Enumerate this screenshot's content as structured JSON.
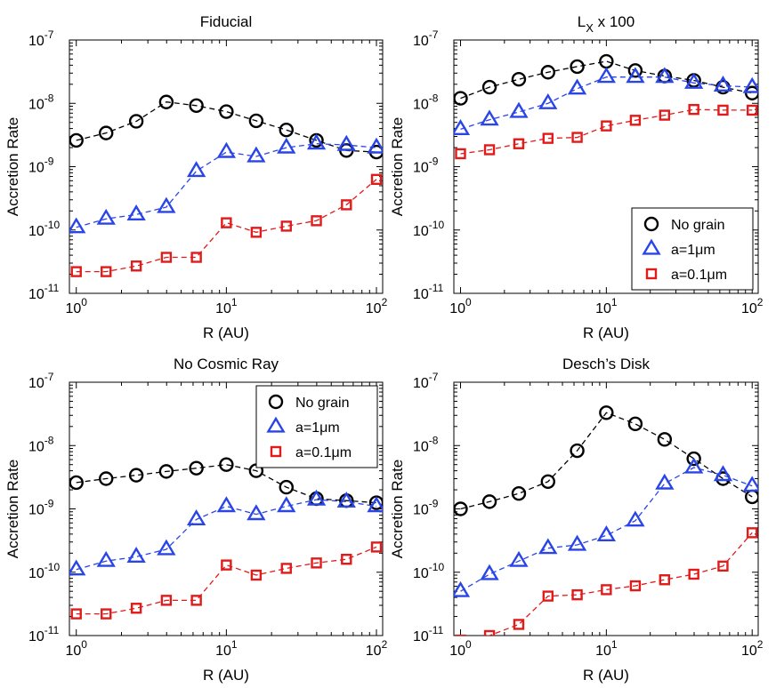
{
  "figure": {
    "description": "Accretion rate vs radius, four panels"
  },
  "legend": {
    "entries": [
      {
        "label": "No grain",
        "marker": "circle",
        "color": "#000000"
      },
      {
        "label": "a=1μm",
        "marker": "triangle",
        "color": "#2a45e6"
      },
      {
        "label": "a=0.1μm",
        "marker": "square",
        "color": "#e11a1a"
      }
    ]
  },
  "chart_data": [
    {
      "type": "line",
      "title": "Fiducial",
      "xlabel": "R (AU)",
      "ylabel": "Accretion Rate",
      "xscale": "log",
      "yscale": "log",
      "xlim": [
        0.9,
        110
      ],
      "ylim": [
        1e-11,
        1e-07
      ],
      "xticks": [
        "10^0",
        "10^1",
        "10^2"
      ],
      "yticks": [
        "10^-11",
        "10^-10",
        "10^-9",
        "10^-8",
        "10^-7"
      ],
      "legend": null,
      "x": [
        1.0,
        1.58,
        2.51,
        3.98,
        6.31,
        10.0,
        15.8,
        25.1,
        39.8,
        63.1,
        100.0
      ],
      "series": [
        {
          "name": "No grain",
          "values": [
            2.6e-09,
            3.4e-09,
            5.2e-09,
            1.05e-08,
            9.2e-09,
            7.4e-09,
            5.3e-09,
            3.8e-09,
            2.6e-09,
            1.8e-09,
            1.7e-09
          ]
        },
        {
          "name": "a=1μm",
          "values": [
            1.1e-10,
            1.5e-10,
            1.75e-10,
            2.3e-10,
            8.5e-10,
            1.7e-09,
            1.45e-09,
            2e-09,
            2.3e-09,
            2.2e-09,
            2e-09
          ]
        },
        {
          "name": "a=0.1μm",
          "values": [
            2.2e-11,
            2.2e-11,
            2.7e-11,
            3.7e-11,
            3.7e-11,
            1.3e-10,
            9.2e-11,
            1.15e-10,
            1.4e-10,
            2.5e-10,
            6.3e-10
          ]
        }
      ]
    },
    {
      "type": "line",
      "title_base": "L",
      "title_sub": "X",
      "title_rest": " x 100",
      "xlabel": "R (AU)",
      "ylabel": "Accretion Rate",
      "xscale": "log",
      "yscale": "log",
      "xlim": [
        0.9,
        110
      ],
      "ylim": [
        1e-11,
        1e-07
      ],
      "xticks": [
        "10^0",
        "10^1",
        "10^2"
      ],
      "yticks": [
        "10^-11",
        "10^-10",
        "10^-9",
        "10^-8",
        "10^-7"
      ],
      "legend": "bottom-right",
      "x": [
        1.0,
        1.58,
        2.51,
        3.98,
        6.31,
        10.0,
        15.8,
        25.1,
        39.8,
        63.1,
        100.0
      ],
      "series": [
        {
          "name": "No grain",
          "values": [
            1.2e-08,
            1.8e-08,
            2.4e-08,
            3.1e-08,
            3.8e-08,
            4.6e-08,
            3.3e-08,
            2.7e-08,
            2.3e-08,
            1.8e-08,
            1.45e-08
          ]
        },
        {
          "name": "a=1μm",
          "values": [
            3.9e-09,
            5.5e-09,
            7.3e-09,
            1e-08,
            1.7e-08,
            2.6e-08,
            2.6e-08,
            2.6e-08,
            2.1e-08,
            1.9e-08,
            1.8e-08
          ]
        },
        {
          "name": "a=0.1μm",
          "values": [
            1.6e-09,
            1.85e-09,
            2.3e-09,
            2.8e-09,
            2.9e-09,
            4.4e-09,
            5.4e-09,
            6.5e-09,
            8e-09,
            7.8e-09,
            7.8e-09
          ]
        }
      ]
    },
    {
      "type": "line",
      "title": "No Cosmic Ray",
      "xlabel": "R (AU)",
      "ylabel": "Accretion Rate",
      "xscale": "log",
      "yscale": "log",
      "xlim": [
        0.9,
        110
      ],
      "ylim": [
        1e-11,
        1e-07
      ],
      "xticks": [
        "10^0",
        "10^1",
        "10^2"
      ],
      "yticks": [
        "10^-11",
        "10^-10",
        "10^-9",
        "10^-8",
        "10^-7"
      ],
      "legend": "top-right",
      "x": [
        1.0,
        1.58,
        2.51,
        3.98,
        6.31,
        10.0,
        15.8,
        25.1,
        39.8,
        63.1,
        100.0
      ],
      "series": [
        {
          "name": "No grain",
          "values": [
            2.6e-09,
            3e-09,
            3.4e-09,
            3.9e-09,
            4.4e-09,
            5e-09,
            4e-09,
            2.2e-09,
            1.45e-09,
            1.35e-09,
            1.25e-09
          ]
        },
        {
          "name": "a=1μm",
          "values": [
            1.1e-10,
            1.5e-10,
            1.75e-10,
            2.3e-10,
            6.8e-10,
            1.1e-09,
            8.2e-10,
            1.1e-09,
            1.4e-09,
            1.3e-09,
            1.1e-09
          ]
        },
        {
          "name": "a=0.1μm",
          "values": [
            2.2e-11,
            2.2e-11,
            2.7e-11,
            3.6e-11,
            3.6e-11,
            1.3e-10,
            9e-11,
            1.15e-10,
            1.4e-10,
            1.6e-10,
            2.5e-10
          ]
        }
      ]
    },
    {
      "type": "line",
      "title": "Desch’s Disk",
      "xlabel": "R (AU)",
      "ylabel": "Accretion Rate",
      "xscale": "log",
      "yscale": "log",
      "xlim": [
        0.9,
        110
      ],
      "ylim": [
        1e-11,
        1e-07
      ],
      "xticks": [
        "10^0",
        "10^1",
        "10^2"
      ],
      "yticks": [
        "10^-11",
        "10^-10",
        "10^-9",
        "10^-8",
        "10^-7"
      ],
      "legend": null,
      "x": [
        1.0,
        1.58,
        2.51,
        3.98,
        6.31,
        10.0,
        15.8,
        25.1,
        39.8,
        63.1,
        100.0
      ],
      "series": [
        {
          "name": "No grain",
          "values": [
            1e-09,
            1.3e-09,
            1.75e-09,
            2.7e-09,
            8.3e-09,
            3.3e-08,
            2.2e-08,
            1.25e-08,
            6.2e-09,
            3e-09,
            1.55e-09
          ]
        },
        {
          "name": "a=1μm",
          "values": [
            5e-11,
            9.3e-11,
            1.5e-10,
            2.4e-10,
            2.7e-10,
            3.8e-10,
            6.5e-10,
            2.5e-09,
            4.5e-09,
            3.4e-09,
            2.3e-09
          ]
        },
        {
          "name": "a=0.1μm",
          "values": [
            8.5e-12,
            1e-11,
            1.5e-11,
            4.2e-11,
            4.4e-11,
            5.3e-11,
            6.1e-11,
            7.6e-11,
            9.3e-11,
            1.25e-10,
            4.2e-10
          ]
        }
      ]
    }
  ]
}
